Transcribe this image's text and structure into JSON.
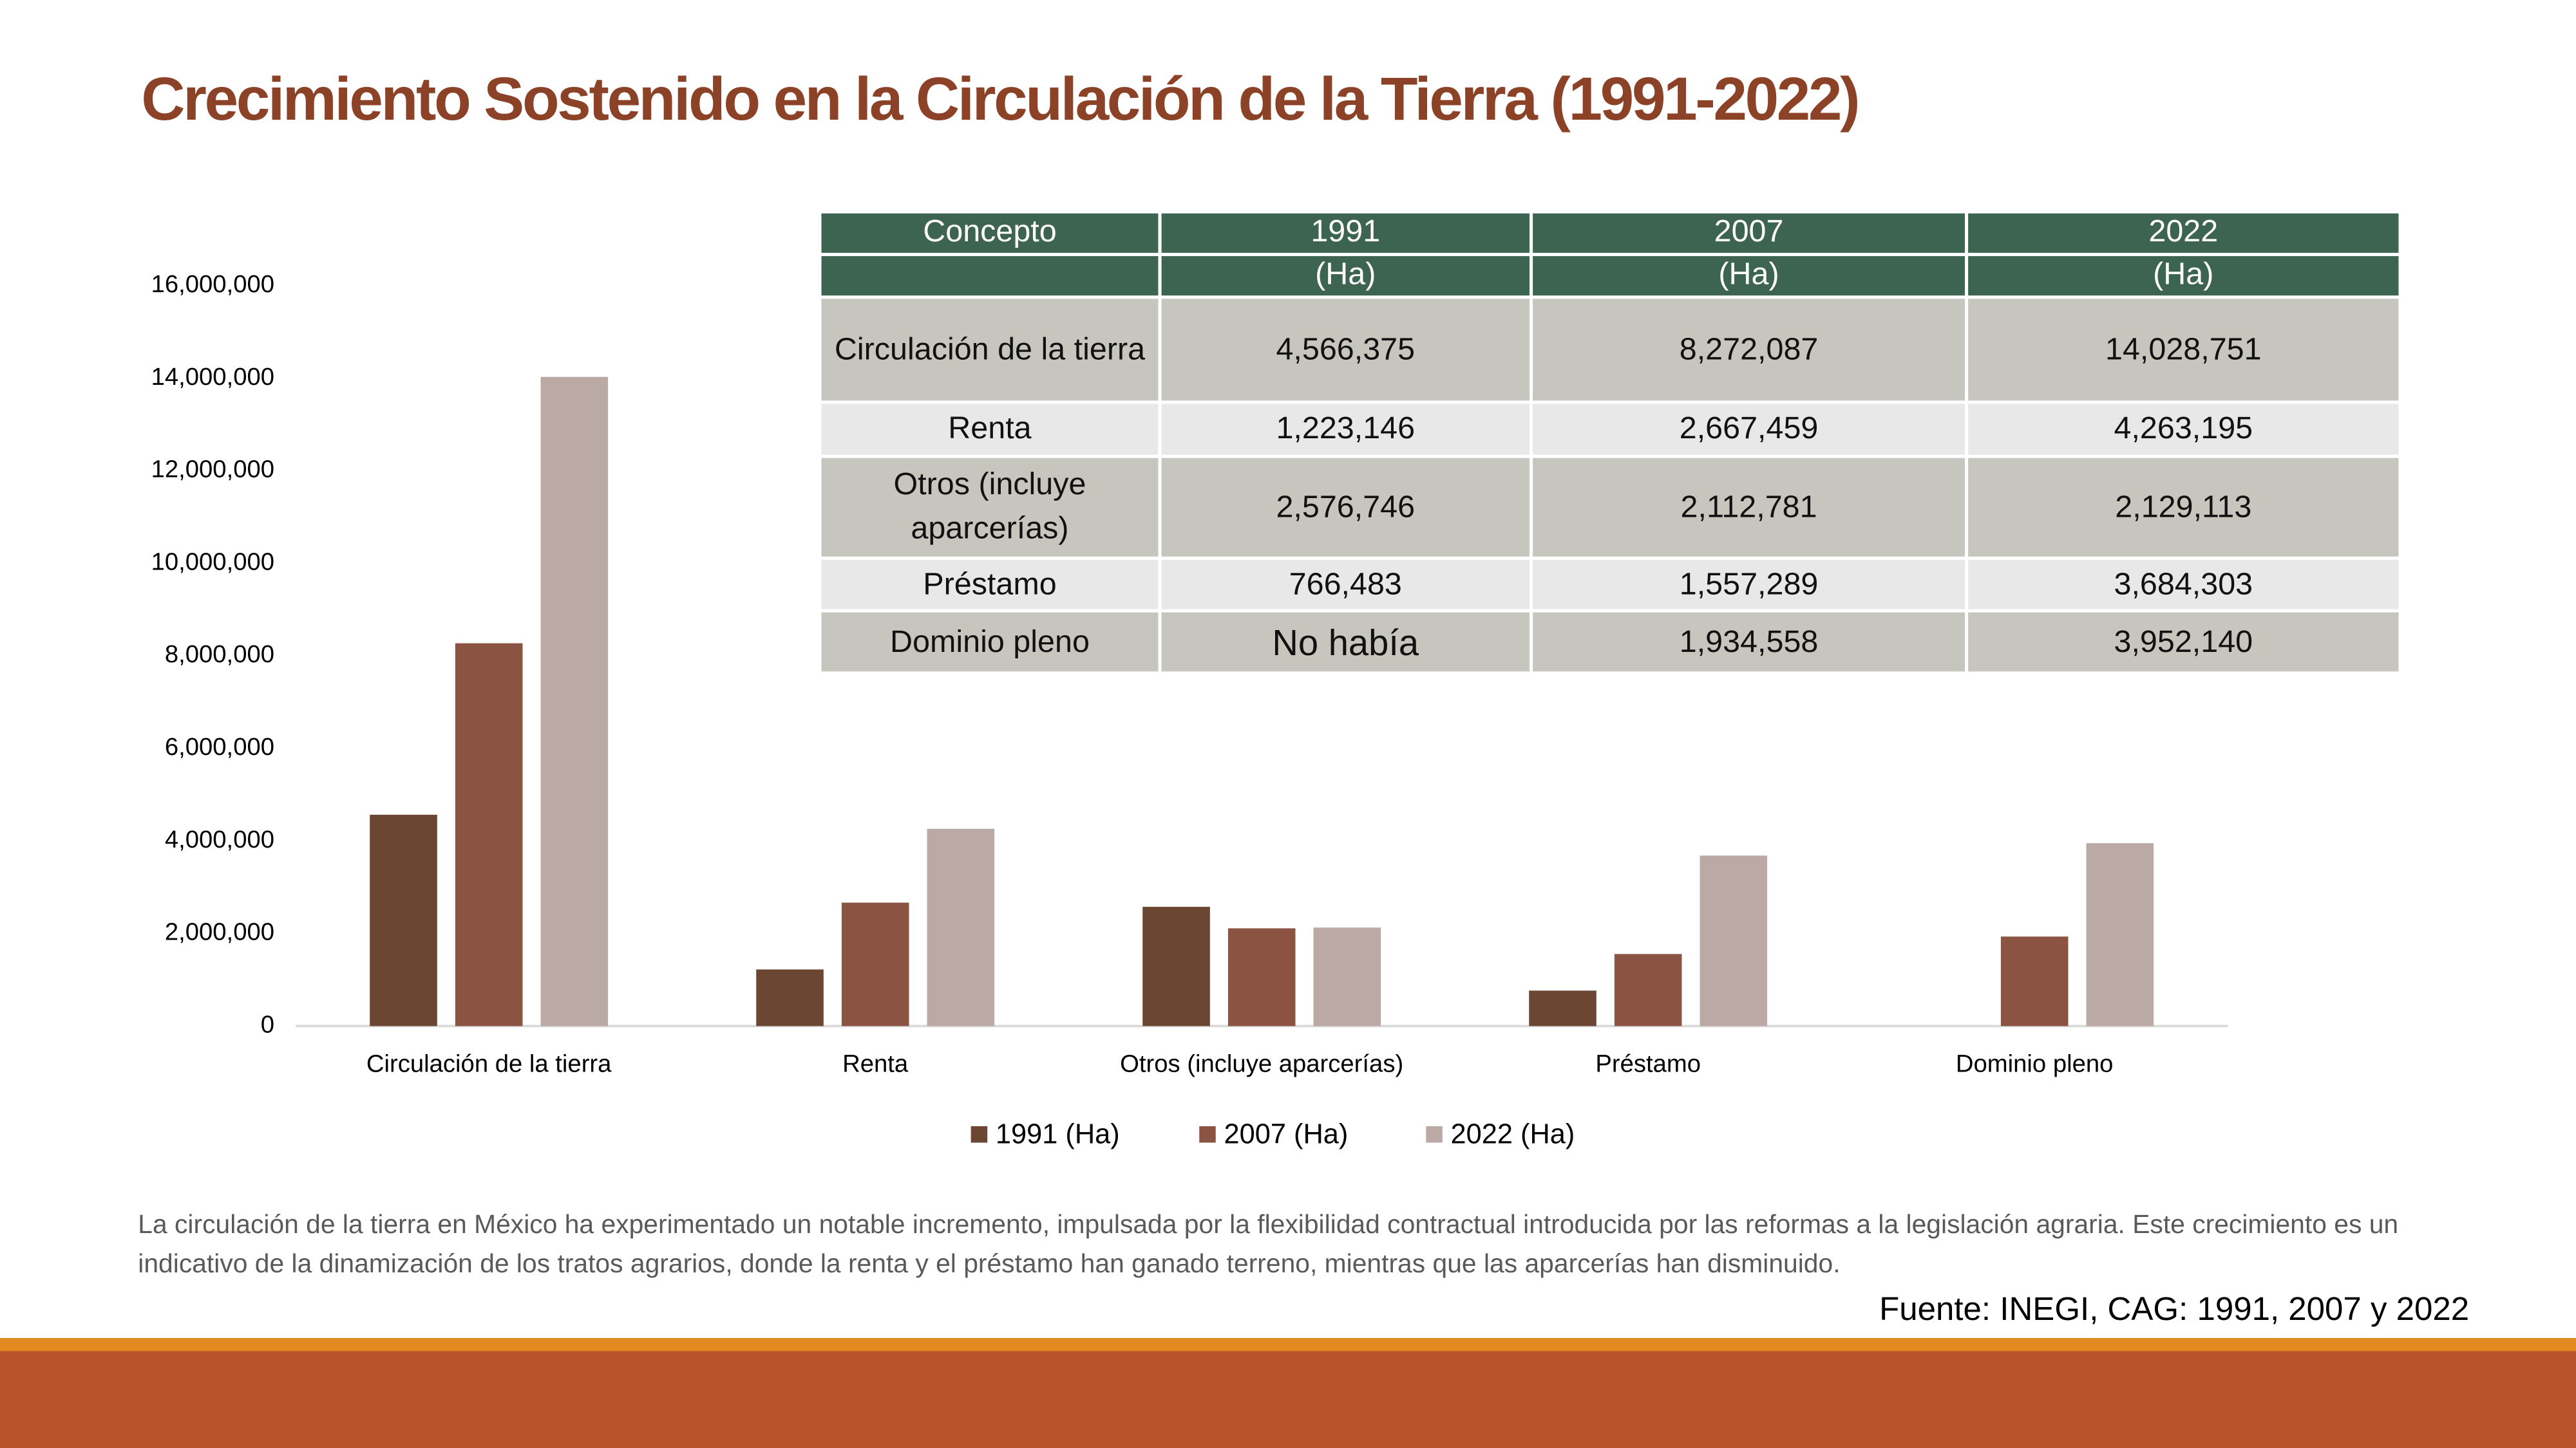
{
  "chart_data": {
    "type": "bar",
    "title": "Crecimiento Sostenido en la Circulación de la Tierra (1991-2022)",
    "categories": [
      "Circulación de la tierra",
      "Renta",
      "Otros (incluye aparcerías)",
      "Préstamo",
      "Dominio pleno"
    ],
    "series": [
      {
        "name": "1991 (Ha)",
        "color": "#6b4632",
        "values": [
          4566375,
          1223146,
          2576746,
          766483,
          null
        ]
      },
      {
        "name": "2007 (Ha)",
        "color": "#8b5442",
        "values": [
          8272087,
          2667459,
          2112781,
          1557289,
          1934558
        ]
      },
      {
        "name": "2022 (Ha)",
        "color": "#baa9a5",
        "values": [
          14028751,
          4263195,
          2129113,
          3684303,
          3952140
        ]
      }
    ],
    "ylim": [
      0,
      16000000
    ],
    "yticks": [
      0,
      {
        "value": 2000000,
        "label": "2,000,000"
      },
      {
        "value": 4000000,
        "label": "4,000,000"
      },
      {
        "value": 6000000,
        "label": "6,000,000"
      },
      {
        "value": 8000000,
        "label": "8,000,000"
      },
      {
        "value": 10000000,
        "label": "10,000,000"
      },
      {
        "value": 12000000,
        "label": "12,000,000"
      },
      {
        "value": 14000000,
        "label": "14,000,000"
      },
      {
        "value": 16000000,
        "label": "16,000,000"
      }
    ],
    "grid": false,
    "legend": "bottom"
  },
  "table": {
    "header": [
      "Concepto",
      "1991",
      "2007",
      "2022"
    ],
    "units": [
      "(Ha)",
      "(Ha)",
      "(Ha)"
    ],
    "rows": [
      [
        "Circulación de la tierra",
        "4,566,375",
        "8,272,087",
        "14,028,751"
      ],
      [
        "Renta",
        "1,223,146",
        "2,667,459",
        "4,263,195"
      ],
      [
        "Otros (incluye aparcerías)",
        "2,576,746",
        "2,112,781",
        "2,129,113"
      ],
      [
        "Préstamo",
        "766,483",
        "1,557,289",
        "3,684,303"
      ],
      [
        "Dominio pleno",
        "No había",
        "1,934,558",
        "3,952,140"
      ]
    ]
  },
  "description": "La circulación de la tierra en México ha experimentado un notable incremento, impulsada por la flexibilidad contractual introducida por las reformas a la legislación agraria. Este crecimiento es un indicativo de la dinamización de los tratos agrarios, donde la renta y el préstamo han ganado terreno, mientras que las aparcerías han disminuido.",
  "source": "Fuente: INEGI, CAG: 1991, 2007 y 2022"
}
